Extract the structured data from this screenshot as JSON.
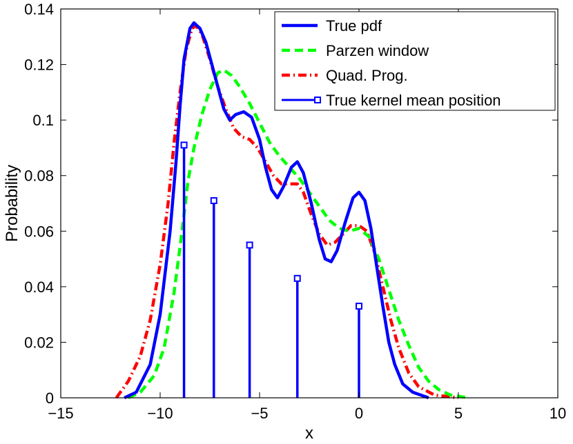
{
  "chart_data": {
    "type": "line",
    "title": "",
    "xlabel": "x",
    "ylabel": "Probability",
    "xlim": [
      -15,
      10
    ],
    "ylim": [
      0,
      0.14
    ],
    "xticks": [
      -15,
      -10,
      -5,
      0,
      5,
      10
    ],
    "xtick_labels": [
      "−15",
      "−10",
      "−5",
      "0",
      "5",
      "10"
    ],
    "yticks": [
      0,
      0.02,
      0.04,
      0.06,
      0.08,
      0.1,
      0.12,
      0.14
    ],
    "ytick_labels": [
      "0",
      "0.02",
      "0.04",
      "0.06",
      "0.08",
      "0.1",
      "0.12",
      "0.14"
    ],
    "grid": false,
    "legend_position": "top-right",
    "series": [
      {
        "name": "True pdf",
        "style": "solid",
        "color": "#0000ff",
        "points": [
          [
            -11.8,
            0
          ],
          [
            -11.2,
            0.002
          ],
          [
            -10.5,
            0.012
          ],
          [
            -10,
            0.03
          ],
          [
            -9.5,
            0.06
          ],
          [
            -9.2,
            0.085
          ],
          [
            -9,
            0.105
          ],
          [
            -8.8,
            0.122
          ],
          [
            -8.5,
            0.133
          ],
          [
            -8.3,
            0.135
          ],
          [
            -8,
            0.133
          ],
          [
            -7.7,
            0.128
          ],
          [
            -7.4,
            0.12
          ],
          [
            -7.1,
            0.112
          ],
          [
            -6.8,
            0.104
          ],
          [
            -6.5,
            0.1
          ],
          [
            -6.2,
            0.102
          ],
          [
            -5.8,
            0.103
          ],
          [
            -5.4,
            0.101
          ],
          [
            -5,
            0.093
          ],
          [
            -4.7,
            0.083
          ],
          [
            -4.4,
            0.075
          ],
          [
            -4.1,
            0.072
          ],
          [
            -3.8,
            0.076
          ],
          [
            -3.4,
            0.083
          ],
          [
            -3.1,
            0.085
          ],
          [
            -2.8,
            0.081
          ],
          [
            -2.4,
            0.07
          ],
          [
            -2,
            0.057
          ],
          [
            -1.7,
            0.05
          ],
          [
            -1.4,
            0.049
          ],
          [
            -1.1,
            0.053
          ],
          [
            -0.7,
            0.063
          ],
          [
            -0.3,
            0.072
          ],
          [
            0,
            0.074
          ],
          [
            0.3,
            0.071
          ],
          [
            0.6,
            0.061
          ],
          [
            0.9,
            0.047
          ],
          [
            1.2,
            0.033
          ],
          [
            1.5,
            0.02
          ],
          [
            1.8,
            0.012
          ],
          [
            2.2,
            0.005
          ],
          [
            2.7,
            0.002
          ],
          [
            3.5,
            0
          ]
        ]
      },
      {
        "name": "Parzen window",
        "style": "dashed",
        "color": "#00ff00",
        "points": [
          [
            -11.6,
            0
          ],
          [
            -11,
            0.002
          ],
          [
            -10.3,
            0.008
          ],
          [
            -9.8,
            0.018
          ],
          [
            -9.3,
            0.038
          ],
          [
            -8.9,
            0.06
          ],
          [
            -8.6,
            0.078
          ],
          [
            -8.3,
            0.09
          ],
          [
            -7.9,
            0.102
          ],
          [
            -7.5,
            0.111
          ],
          [
            -7.1,
            0.117
          ],
          [
            -6.8,
            0.118
          ],
          [
            -6.4,
            0.116
          ],
          [
            -6,
            0.112
          ],
          [
            -5.5,
            0.106
          ],
          [
            -5,
            0.099
          ],
          [
            -4.5,
            0.092
          ],
          [
            -4,
            0.087
          ],
          [
            -3.5,
            0.083
          ],
          [
            -3,
            0.079
          ],
          [
            -2.5,
            0.074
          ],
          [
            -2,
            0.069
          ],
          [
            -1.5,
            0.064
          ],
          [
            -1,
            0.061
          ],
          [
            -0.5,
            0.06
          ],
          [
            0,
            0.061
          ],
          [
            0.5,
            0.058
          ],
          [
            1,
            0.05
          ],
          [
            1.5,
            0.039
          ],
          [
            2,
            0.028
          ],
          [
            2.5,
            0.019
          ],
          [
            3,
            0.011
          ],
          [
            3.5,
            0.006
          ],
          [
            4,
            0.003
          ],
          [
            4.6,
            0.001
          ],
          [
            5.5,
            0
          ]
        ]
      },
      {
        "name": "Quad. Prog.",
        "style": "dash-dot",
        "color": "#ff0000",
        "points": [
          [
            -12.2,
            0
          ],
          [
            -11.6,
            0.006
          ],
          [
            -11,
            0.015
          ],
          [
            -10.5,
            0.028
          ],
          [
            -10,
            0.048
          ],
          [
            -9.6,
            0.07
          ],
          [
            -9.3,
            0.092
          ],
          [
            -9,
            0.11
          ],
          [
            -8.7,
            0.125
          ],
          [
            -8.4,
            0.133
          ],
          [
            -8.2,
            0.134
          ],
          [
            -7.9,
            0.131
          ],
          [
            -7.5,
            0.122
          ],
          [
            -7.1,
            0.112
          ],
          [
            -6.7,
            0.104
          ],
          [
            -6.3,
            0.097
          ],
          [
            -5.9,
            0.094
          ],
          [
            -5.5,
            0.093
          ],
          [
            -5.1,
            0.09
          ],
          [
            -4.7,
            0.085
          ],
          [
            -4.3,
            0.08
          ],
          [
            -3.9,
            0.077
          ],
          [
            -3.5,
            0.077
          ],
          [
            -3.1,
            0.077
          ],
          [
            -2.8,
            0.074
          ],
          [
            -2.4,
            0.066
          ],
          [
            -2,
            0.059
          ],
          [
            -1.6,
            0.055
          ],
          [
            -1.2,
            0.056
          ],
          [
            -0.8,
            0.059
          ],
          [
            -0.4,
            0.062
          ],
          [
            0,
            0.062
          ],
          [
            0.4,
            0.06
          ],
          [
            0.8,
            0.052
          ],
          [
            1.2,
            0.04
          ],
          [
            1.6,
            0.028
          ],
          [
            2,
            0.018
          ],
          [
            2.5,
            0.009
          ],
          [
            3,
            0.004
          ],
          [
            3.8,
            0.001
          ],
          [
            5,
            0
          ]
        ]
      }
    ],
    "stems": {
      "name": "True kernel mean position",
      "color": "#0000ff",
      "marker": "square",
      "x": [
        -8.8,
        -7.3,
        -5.5,
        -3.1,
        0
      ],
      "y": [
        0.091,
        0.071,
        0.055,
        0.043,
        0.033
      ]
    }
  }
}
